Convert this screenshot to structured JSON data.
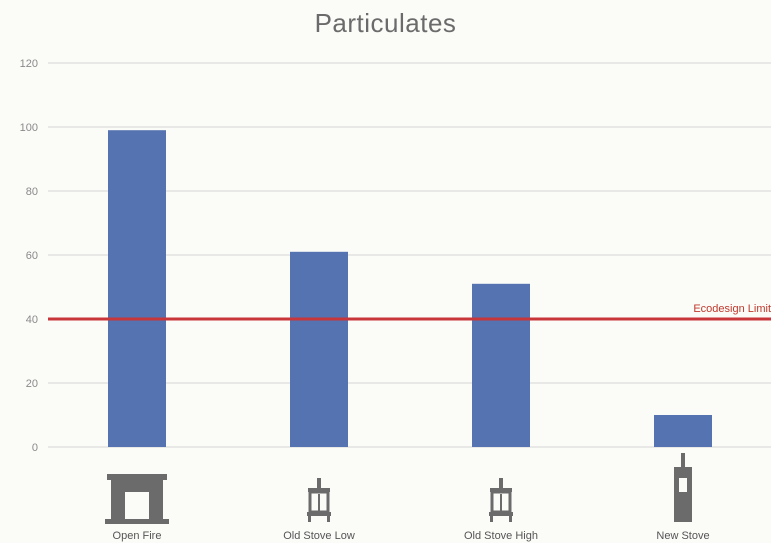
{
  "chart_data": {
    "type": "bar",
    "title": "Particulates",
    "categories": [
      "Open Fire",
      "Old Stove Low",
      "Old Stove High",
      "New Stove"
    ],
    "values": [
      99,
      61,
      51,
      10
    ],
    "ylim": [
      0,
      120
    ],
    "yticks": [
      0,
      20,
      40,
      60,
      80,
      100,
      120
    ],
    "grid": true,
    "bar_color": "#5473b0",
    "reference_line": {
      "label": "Ecodesign Limit",
      "value": 40,
      "color": "#c8363a"
    },
    "category_icons": [
      "open-fire-icon",
      "old-stove-icon",
      "old-stove-icon",
      "new-stove-icon"
    ],
    "icon_color": "#6b6b6b"
  }
}
